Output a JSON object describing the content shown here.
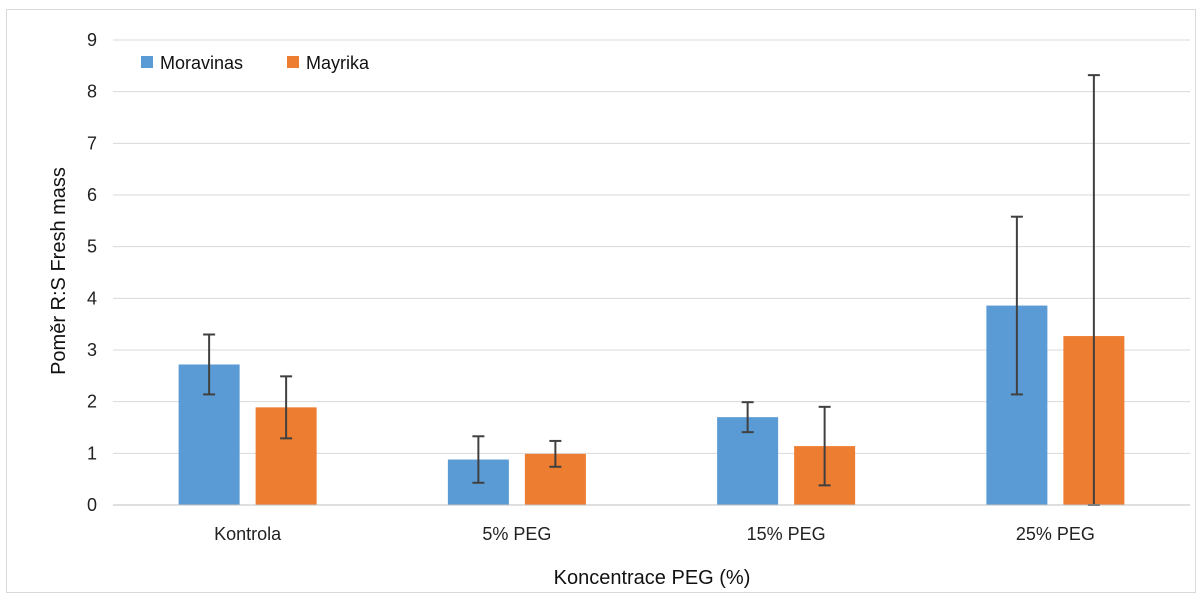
{
  "chart_data": {
    "type": "bar",
    "categories": [
      "Kontrola",
      "5% PEG",
      "15% PEG",
      "25% PEG"
    ],
    "series": [
      {
        "name": "Moravinas",
        "color": "#5b9bd5",
        "values": [
          2.72,
          0.88,
          1.7,
          3.86
        ],
        "error": [
          0.58,
          0.45,
          0.29,
          1.72
        ]
      },
      {
        "name": "Mayrika",
        "color": "#ed7d31",
        "values": [
          1.89,
          0.99,
          1.14,
          3.27
        ],
        "error": [
          0.6,
          0.25,
          0.76,
          5.05
        ]
      }
    ],
    "title": "",
    "xlabel": "Koncentrace PEG (%)",
    "ylabel": "Poměr R:S  Fresh mass",
    "ylim": [
      0,
      9
    ],
    "yticks": [
      "0",
      "1",
      "2",
      "3",
      "4",
      "5",
      "6",
      "7",
      "8",
      "9"
    ],
    "grid": true,
    "legend_position": "top-left",
    "error_bar_color": "#404040",
    "grid_color": "#d9d9d9"
  }
}
